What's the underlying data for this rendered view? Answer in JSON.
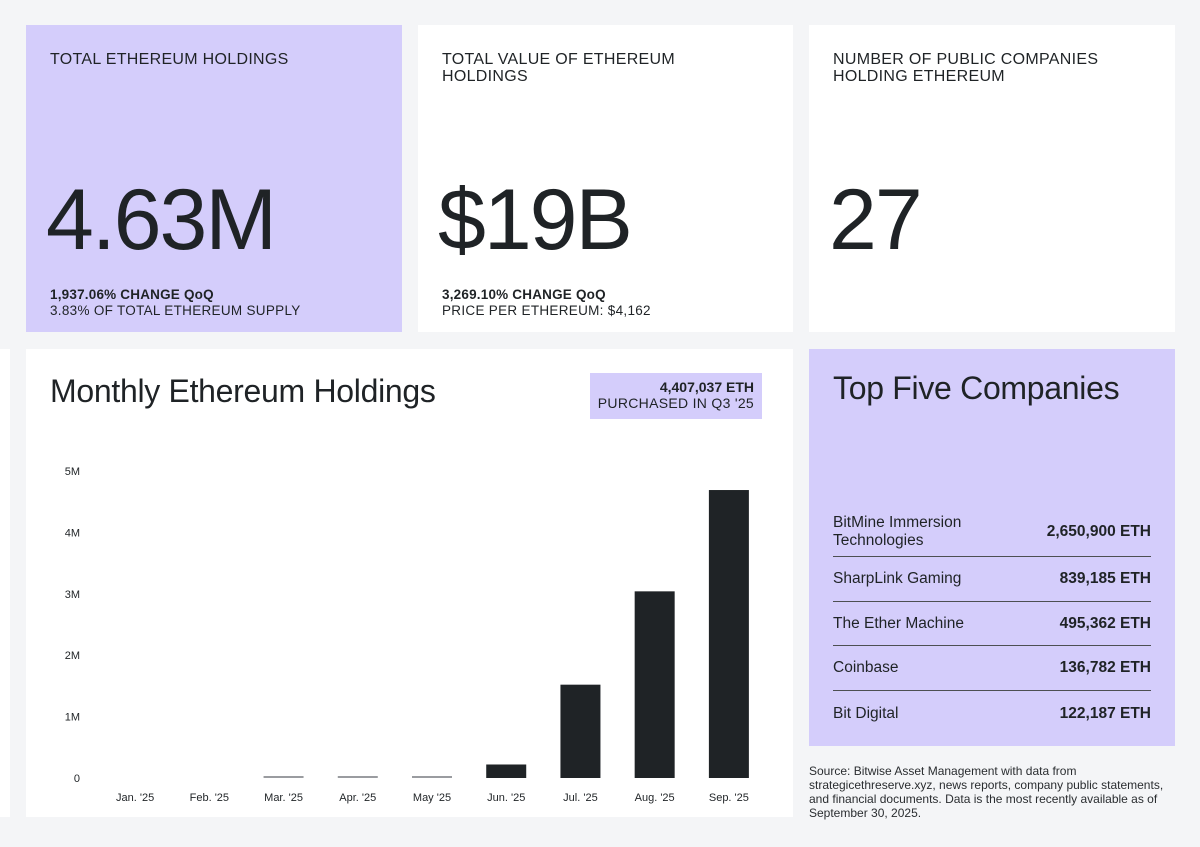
{
  "stats": [
    {
      "label": "TOTAL ETHEREUM HOLDINGS",
      "value": "4.63M",
      "change": "1,937.06% CHANGE QoQ",
      "sub": "3.83% OF TOTAL ETHEREUM SUPPLY"
    },
    {
      "label": "TOTAL VALUE OF ETHEREUM HOLDINGS",
      "value": "$19B",
      "change": "3,269.10% CHANGE QoQ",
      "sub": "PRICE PER ETHEREUM: $4,162"
    },
    {
      "label": "NUMBER OF PUBLIC COMPANIES HOLDING ETHEREUM",
      "value": "27",
      "change": "",
      "sub": ""
    }
  ],
  "chart_card": {
    "title": "Monthly Ethereum Holdings",
    "badge_value": "4,407,037 ETH",
    "badge_label": "PURCHASED IN Q3 '25"
  },
  "chart_data": {
    "type": "bar",
    "categories": [
      "Jan. '25",
      "Feb. '25",
      "Mar. '25",
      "Apr. '25",
      "May '25",
      "Jun. '25",
      "Jul. '25",
      "Aug. '25",
      "Sep. '25"
    ],
    "values": [
      0,
      0,
      10000,
      10000,
      10000,
      220000,
      1520000,
      3040000,
      4690000
    ],
    "ylim": [
      0,
      5000000
    ],
    "yticks": [
      0,
      1000000,
      2000000,
      3000000,
      4000000,
      5000000
    ],
    "ytick_labels": [
      "0",
      "1M",
      "2M",
      "3M",
      "4M",
      "5M"
    ],
    "title": "Monthly Ethereum Holdings",
    "xlabel": "",
    "ylabel": "",
    "grid": false,
    "colors": {
      "bar": "#1f2326",
      "small_bar": "#9a9ca0"
    }
  },
  "top_five": {
    "title": "Top Five Companies",
    "rows": [
      {
        "name": "BitMine Immersion Technologies",
        "value": "2,650,900 ETH"
      },
      {
        "name": "SharpLink Gaming",
        "value": "839,185 ETH"
      },
      {
        "name": "The Ether Machine",
        "value": "495,362 ETH"
      },
      {
        "name": "Coinbase",
        "value": "136,782 ETH"
      },
      {
        "name": "Bit Digital",
        "value": "122,187 ETH"
      }
    ]
  },
  "source": "Source: Bitwise Asset Management with data from strategicethreserve.xyz, news reports, company public statements, and financial documents. Data is the most recently available as of September 30, 2025.",
  "colors": {
    "accent": "#d4cdfb",
    "background": "#f4f5f7",
    "card": "#ffffff",
    "text": "#1f2326"
  }
}
